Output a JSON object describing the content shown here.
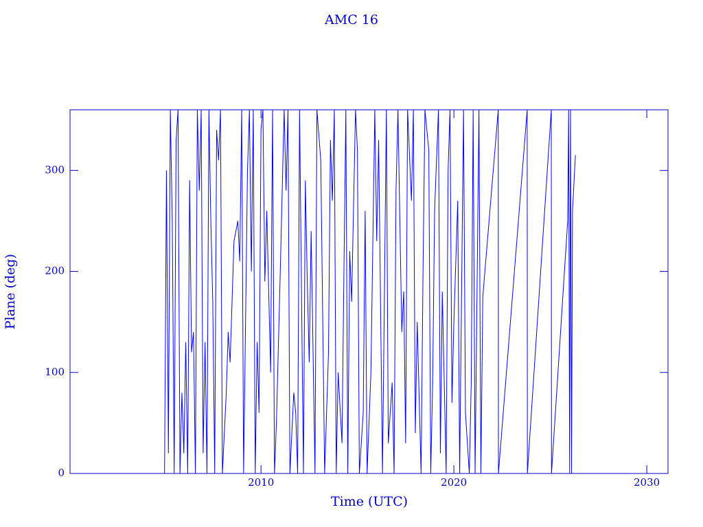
{
  "chart_data": {
    "type": "line",
    "title": "AMC 16",
    "xlabel": "Time (UTC)",
    "ylabel": "Plane (deg)",
    "x": [
      2005.0,
      2005.1,
      2005.2,
      2005.3,
      2005.4,
      2005.5,
      2005.6,
      2005.7,
      2005.8,
      2005.9,
      2006.0,
      2006.1,
      2006.2,
      2006.3,
      2006.4,
      2006.5,
      2006.6,
      2006.7,
      2006.8,
      2006.9,
      2007.0,
      2007.1,
      2007.2,
      2007.3,
      2007.4,
      2007.5,
      2007.6,
      2007.7,
      2007.8,
      2007.9,
      2008.0,
      2008.2,
      2008.3,
      2008.4,
      2008.6,
      2008.8,
      2008.9,
      2009.0,
      2009.1,
      2009.3,
      2009.4,
      2009.5,
      2009.6,
      2009.7,
      2009.8,
      2009.9,
      2010.0,
      2010.1,
      2010.2,
      2010.3,
      2010.5,
      2010.6,
      2010.7,
      2010.8,
      2011.0,
      2011.2,
      2011.3,
      2011.4,
      2011.5,
      2011.7,
      2011.8,
      2011.9,
      2012.0,
      2012.2,
      2012.3,
      2012.4,
      2012.5,
      2012.6,
      2012.8,
      2012.9,
      2013.1,
      2013.3,
      2013.5,
      2013.6,
      2013.7,
      2013.8,
      2013.9,
      2014.0,
      2014.2,
      2014.3,
      2014.4,
      2014.5,
      2014.6,
      2014.7,
      2014.9,
      2015.0,
      2015.1,
      2015.3,
      2015.4,
      2015.5,
      2015.7,
      2015.9,
      2016.0,
      2016.1,
      2016.3,
      2016.5,
      2016.6,
      2016.8,
      2016.9,
      2017.0,
      2017.1,
      2017.3,
      2017.4,
      2017.5,
      2017.6,
      2017.8,
      2017.9,
      2018.0,
      2018.1,
      2018.3,
      2018.4,
      2018.5,
      2018.7,
      2018.8,
      2018.9,
      2019.0,
      2019.2,
      2019.3,
      2019.4,
      2019.6,
      2019.7,
      2019.8,
      2019.9,
      2020.0,
      2020.2,
      2020.3,
      2020.5,
      2020.6,
      2020.8,
      2020.9,
      2021.0,
      2021.1,
      2021.3,
      2021.4,
      2021.5,
      2022.3,
      2022.31,
      2023.8,
      2023.81,
      2025.05,
      2025.06,
      2025.9,
      2025.95,
      2026.0,
      2026.05,
      2026.1,
      2026.15,
      2026.3
    ],
    "series": [
      {
        "color": "#0000ff",
        "values": [
          0,
          300,
          20,
          360,
          250,
          0,
          330,
          360,
          0,
          80,
          20,
          130,
          0,
          290,
          120,
          140,
          0,
          360,
          280,
          360,
          20,
          130,
          0,
          360,
          250,
          170,
          0,
          340,
          310,
          360,
          0,
          80,
          140,
          110,
          230,
          250,
          210,
          360,
          0,
          300,
          360,
          200,
          360,
          0,
          130,
          60,
          340,
          360,
          190,
          260,
          100,
          360,
          0,
          50,
          200,
          360,
          280,
          360,
          0,
          80,
          60,
          0,
          360,
          0,
          290,
          190,
          110,
          240,
          0,
          360,
          310,
          0,
          120,
          330,
          270,
          360,
          0,
          100,
          30,
          200,
          360,
          0,
          220,
          170,
          360,
          320,
          0,
          60,
          260,
          0,
          100,
          360,
          230,
          330,
          0,
          360,
          30,
          90,
          0,
          280,
          360,
          140,
          180,
          30,
          360,
          270,
          360,
          40,
          150,
          0,
          200,
          360,
          320,
          0,
          90,
          260,
          360,
          20,
          180,
          0,
          300,
          360,
          70,
          150,
          270,
          0,
          360,
          60,
          0,
          90,
          360,
          0,
          360,
          0,
          175,
          360,
          0,
          360,
          0,
          360,
          0,
          250,
          360,
          0,
          360,
          0,
          260,
          315
        ]
      }
    ],
    "xlim": [
      2000.1,
      2031.1
    ],
    "xticks": [
      2010,
      2020,
      2030
    ],
    "ylim": [
      0,
      360
    ],
    "yticks": [
      0,
      100,
      200,
      300
    ]
  }
}
